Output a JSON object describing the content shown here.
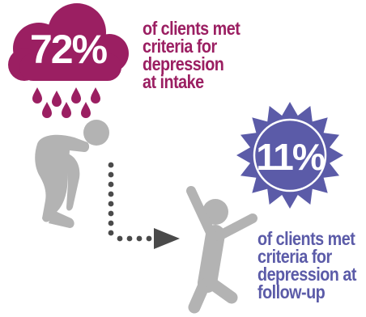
{
  "intake": {
    "stat": "72%",
    "caption_lines": [
      "of clients met",
      "criteria for",
      "depression",
      "at intake"
    ]
  },
  "followup": {
    "stat": "11%",
    "caption_lines": [
      "of clients met",
      "criteria for",
      "depression at",
      "follow-up"
    ]
  },
  "colors": {
    "intake": "#9b1f62",
    "followup": "#5b5ba8",
    "figure": "#b3b3b3",
    "arrow": "#4a4a4a"
  },
  "icons": {
    "cloud": "rain-cloud-icon",
    "raindrop": "raindrop-icon",
    "sad_figure": "slumped-person-icon",
    "happy_figure": "cheering-person-icon",
    "badge": "sunburst-badge-icon",
    "arrow": "dotted-arrow-icon"
  }
}
